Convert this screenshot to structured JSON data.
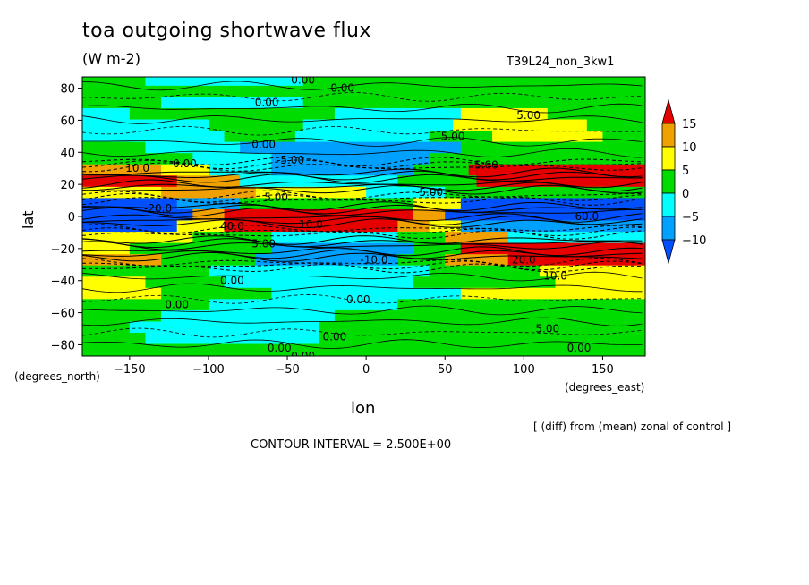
{
  "chart_data": {
    "type": "heatmap",
    "title": "toa outgoing shortwave flux",
    "units": "(W m-2)",
    "run_label": "T39L24_non_3kw1",
    "xlabel": "lon",
    "ylabel": "lat",
    "x_unit_label": "(degrees_east)",
    "y_unit_label": "(degrees_north)",
    "x_ticks": [
      -150,
      -100,
      -50,
      0,
      50,
      100,
      150
    ],
    "y_ticks": [
      80,
      60,
      40,
      20,
      0,
      -20,
      -40,
      -60,
      -80
    ],
    "xlim": [
      -180,
      177
    ],
    "ylim": [
      -87,
      87
    ],
    "note": "[ (diff) from (mean) zonal of control ]",
    "contour_interval_text": "CONTOUR INTERVAL = 2.500E+00",
    "colorbar": {
      "ticks": [
        15,
        10,
        5,
        0,
        -5,
        -10
      ],
      "bins": [
        {
          "lo": 15,
          "hi": null,
          "color": "#e60000"
        },
        {
          "lo": 10,
          "hi": 15,
          "color": "#f0a000"
        },
        {
          "lo": 5,
          "hi": 10,
          "color": "#ffff00"
        },
        {
          "lo": 0,
          "hi": 5,
          "color": "#00dc00"
        },
        {
          "lo": -5,
          "hi": 0,
          "color": "#00ffff"
        },
        {
          "lo": -10,
          "hi": -5,
          "color": "#00a0ff"
        },
        {
          "lo": null,
          "hi": -10,
          "color": "#0050ff"
        }
      ]
    },
    "contour_labels": [
      {
        "text": "0.00",
        "lon": -40,
        "lat": 85
      },
      {
        "text": "0.00",
        "lon": -15,
        "lat": 80
      },
      {
        "text": "0.00",
        "lon": -63,
        "lat": 71
      },
      {
        "text": "5.00",
        "lon": 103,
        "lat": 63
      },
      {
        "text": "5.00",
        "lon": 55,
        "lat": 50
      },
      {
        "text": "0.00",
        "lon": -65,
        "lat": 45
      },
      {
        "text": "0.00",
        "lon": -115,
        "lat": 33
      },
      {
        "text": "-5.00",
        "lon": -48,
        "lat": 35
      },
      {
        "text": "10.0",
        "lon": -145,
        "lat": 30
      },
      {
        "text": "-5.00",
        "lon": 75,
        "lat": 32
      },
      {
        "text": "5.00",
        "lon": -57,
        "lat": 12
      },
      {
        "text": "-20.0",
        "lon": -132,
        "lat": 5
      },
      {
        "text": "-5.00",
        "lon": 40,
        "lat": 15
      },
      {
        "text": "40.0",
        "lon": -85,
        "lat": -6
      },
      {
        "text": "10.0",
        "lon": -35,
        "lat": -5
      },
      {
        "text": "60.0",
        "lon": 140,
        "lat": 0
      },
      {
        "text": "5.00",
        "lon": -65,
        "lat": -17
      },
      {
        "text": "-10.0",
        "lon": 5,
        "lat": -27
      },
      {
        "text": "20.0",
        "lon": 100,
        "lat": -27
      },
      {
        "text": "0.00",
        "lon": -85,
        "lat": -40
      },
      {
        "text": "10.0",
        "lon": 120,
        "lat": -37
      },
      {
        "text": "0.00",
        "lon": -120,
        "lat": -55
      },
      {
        "text": "0.00",
        "lon": -5,
        "lat": -52
      },
      {
        "text": "5.00",
        "lon": 115,
        "lat": -70
      },
      {
        "text": "0.00",
        "lon": -20,
        "lat": -75
      },
      {
        "text": "0.00",
        "lon": -55,
        "lat": -82
      },
      {
        "text": "0.00",
        "lon": -40,
        "lat": -87
      },
      {
        "text": "0.00",
        "lon": 135,
        "lat": -82
      }
    ],
    "zonal_bands": [
      {
        "lat": 85,
        "colors": [
          {
            "from": -180,
            "to": -140,
            "c": "#00dc00"
          },
          {
            "from": -140,
            "to": -40,
            "c": "#00ffff"
          },
          {
            "from": -40,
            "to": 177,
            "c": "#00dc00"
          }
        ]
      },
      {
        "lat": 78,
        "colors": [
          {
            "from": -180,
            "to": 40,
            "c": "#00dc00"
          },
          {
            "from": 40,
            "to": 177,
            "c": "#00dc00"
          }
        ]
      },
      {
        "lat": 71,
        "colors": [
          {
            "from": -180,
            "to": -130,
            "c": "#00dc00"
          },
          {
            "from": -130,
            "to": -40,
            "c": "#00ffff"
          },
          {
            "from": -40,
            "to": 177,
            "c": "#00dc00"
          }
        ]
      },
      {
        "lat": 64,
        "colors": [
          {
            "from": -180,
            "to": -150,
            "c": "#00ffff"
          },
          {
            "from": -150,
            "to": -20,
            "c": "#00dc00"
          },
          {
            "from": -20,
            "to": 60,
            "c": "#00ffff"
          },
          {
            "from": 60,
            "to": 115,
            "c": "#ffff00"
          },
          {
            "from": 115,
            "to": 177,
            "c": "#00dc00"
          }
        ]
      },
      {
        "lat": 57,
        "colors": [
          {
            "from": -180,
            "to": -100,
            "c": "#00ffff"
          },
          {
            "from": -100,
            "to": -40,
            "c": "#00dc00"
          },
          {
            "from": -40,
            "to": 55,
            "c": "#00ffff"
          },
          {
            "from": 55,
            "to": 140,
            "c": "#ffff00"
          },
          {
            "from": 140,
            "to": 177,
            "c": "#00dc00"
          }
        ]
      },
      {
        "lat": 50,
        "colors": [
          {
            "from": -180,
            "to": -90,
            "c": "#00ffff"
          },
          {
            "from": -90,
            "to": -45,
            "c": "#00dc00"
          },
          {
            "from": -45,
            "to": 40,
            "c": "#00ffff"
          },
          {
            "from": 40,
            "to": 80,
            "c": "#00dc00"
          },
          {
            "from": 80,
            "to": 150,
            "c": "#ffff00"
          },
          {
            "from": 150,
            "to": 177,
            "c": "#00dc00"
          }
        ]
      },
      {
        "lat": 43,
        "colors": [
          {
            "from": -180,
            "to": -140,
            "c": "#00dc00"
          },
          {
            "from": -140,
            "to": -80,
            "c": "#00ffff"
          },
          {
            "from": -80,
            "to": 60,
            "c": "#00a0ff"
          },
          {
            "from": 60,
            "to": 177,
            "c": "#00dc00"
          }
        ]
      },
      {
        "lat": 36,
        "colors": [
          {
            "from": -180,
            "to": -110,
            "c": "#00dc00"
          },
          {
            "from": -110,
            "to": -60,
            "c": "#00ffff"
          },
          {
            "from": -60,
            "to": 40,
            "c": "#00a0ff"
          },
          {
            "from": 40,
            "to": 75,
            "c": "#00dc00"
          },
          {
            "from": 75,
            "to": 177,
            "c": "#00dc00"
          }
        ]
      },
      {
        "lat": 29,
        "colors": [
          {
            "from": -180,
            "to": -130,
            "c": "#f0a000"
          },
          {
            "from": -130,
            "to": -100,
            "c": "#ffff00"
          },
          {
            "from": -100,
            "to": -60,
            "c": "#00ffff"
          },
          {
            "from": -60,
            "to": 30,
            "c": "#00a0ff"
          },
          {
            "from": 30,
            "to": 65,
            "c": "#00dc00"
          },
          {
            "from": 65,
            "to": 80,
            "c": "#e60000"
          },
          {
            "from": 80,
            "to": 177,
            "c": "#e60000"
          }
        ]
      },
      {
        "lat": 22,
        "colors": [
          {
            "from": -180,
            "to": -120,
            "c": "#e60000"
          },
          {
            "from": -120,
            "to": -80,
            "c": "#f0a000"
          },
          {
            "from": -80,
            "to": 20,
            "c": "#00ffff"
          },
          {
            "from": 20,
            "to": 70,
            "c": "#00dc00"
          },
          {
            "from": 70,
            "to": 177,
            "c": "#e60000"
          }
        ]
      },
      {
        "lat": 15,
        "colors": [
          {
            "from": -180,
            "to": -130,
            "c": "#ffff00"
          },
          {
            "from": -130,
            "to": -70,
            "c": "#f0a000"
          },
          {
            "from": -70,
            "to": 0,
            "c": "#ffff00"
          },
          {
            "from": 0,
            "to": 50,
            "c": "#00ffff"
          },
          {
            "from": 50,
            "to": 177,
            "c": "#00dc00"
          }
        ]
      },
      {
        "lat": 8,
        "colors": [
          {
            "from": -180,
            "to": -120,
            "c": "#0050ff"
          },
          {
            "from": -120,
            "to": -80,
            "c": "#00a0ff"
          },
          {
            "from": -80,
            "to": 30,
            "c": "#00dc00"
          },
          {
            "from": 30,
            "to": 60,
            "c": "#ffff00"
          },
          {
            "from": 60,
            "to": 177,
            "c": "#0050ff"
          }
        ]
      },
      {
        "lat": 1,
        "colors": [
          {
            "from": -180,
            "to": -110,
            "c": "#0050ff"
          },
          {
            "from": -110,
            "to": -90,
            "c": "#f0a000"
          },
          {
            "from": -90,
            "to": 30,
            "c": "#e60000"
          },
          {
            "from": 30,
            "to": 50,
            "c": "#f0a000"
          },
          {
            "from": 50,
            "to": 177,
            "c": "#0050ff"
          }
        ]
      },
      {
        "lat": -6,
        "colors": [
          {
            "from": -180,
            "to": -120,
            "c": "#0050ff"
          },
          {
            "from": -120,
            "to": -90,
            "c": "#ffff00"
          },
          {
            "from": -90,
            "to": 20,
            "c": "#e60000"
          },
          {
            "from": 20,
            "to": 40,
            "c": "#f0a000"
          },
          {
            "from": 40,
            "to": 60,
            "c": "#ffff00"
          },
          {
            "from": 60,
            "to": 177,
            "c": "#00a0ff"
          }
        ]
      },
      {
        "lat": -13,
        "colors": [
          {
            "from": -180,
            "to": -110,
            "c": "#ffff00"
          },
          {
            "from": -110,
            "to": -60,
            "c": "#00dc00"
          },
          {
            "from": -60,
            "to": 20,
            "c": "#00ffff"
          },
          {
            "from": 20,
            "to": 50,
            "c": "#00dc00"
          },
          {
            "from": 50,
            "to": 90,
            "c": "#f0a000"
          },
          {
            "from": 90,
            "to": 177,
            "c": "#00ffff"
          }
        ]
      },
      {
        "lat": -20,
        "colors": [
          {
            "from": -180,
            "to": -150,
            "c": "#ffff00"
          },
          {
            "from": -150,
            "to": -60,
            "c": "#00dc00"
          },
          {
            "from": -60,
            "to": 30,
            "c": "#00a0ff"
          },
          {
            "from": 30,
            "to": 60,
            "c": "#00dc00"
          },
          {
            "from": 60,
            "to": 177,
            "c": "#e60000"
          }
        ]
      },
      {
        "lat": -27,
        "colors": [
          {
            "from": -180,
            "to": -130,
            "c": "#f0a000"
          },
          {
            "from": -130,
            "to": -70,
            "c": "#00dc00"
          },
          {
            "from": -70,
            "to": 20,
            "c": "#00a0ff"
          },
          {
            "from": 20,
            "to": 50,
            "c": "#00dc00"
          },
          {
            "from": 50,
            "to": 90,
            "c": "#f0a000"
          },
          {
            "from": 90,
            "to": 177,
            "c": "#e60000"
          }
        ]
      },
      {
        "lat": -34,
        "colors": [
          {
            "from": -180,
            "to": -100,
            "c": "#00dc00"
          },
          {
            "from": -100,
            "to": -30,
            "c": "#00ffff"
          },
          {
            "from": -30,
            "to": 40,
            "c": "#00ffff"
          },
          {
            "from": 40,
            "to": 110,
            "c": "#00dc00"
          },
          {
            "from": 110,
            "to": 177,
            "c": "#ffff00"
          }
        ]
      },
      {
        "lat": -41,
        "colors": [
          {
            "from": -180,
            "to": -140,
            "c": "#ffff00"
          },
          {
            "from": -140,
            "to": -90,
            "c": "#00dc00"
          },
          {
            "from": -90,
            "to": 30,
            "c": "#00ffff"
          },
          {
            "from": 30,
            "to": 120,
            "c": "#00dc00"
          },
          {
            "from": 120,
            "to": 177,
            "c": "#ffff00"
          }
        ]
      },
      {
        "lat": -48,
        "colors": [
          {
            "from": -180,
            "to": -130,
            "c": "#ffff00"
          },
          {
            "from": -130,
            "to": -60,
            "c": "#00dc00"
          },
          {
            "from": -60,
            "to": 60,
            "c": "#00ffff"
          },
          {
            "from": 60,
            "to": 177,
            "c": "#ffff00"
          }
        ]
      },
      {
        "lat": -55,
        "colors": [
          {
            "from": -180,
            "to": -140,
            "c": "#00dc00"
          },
          {
            "from": -140,
            "to": -100,
            "c": "#00dc00"
          },
          {
            "from": -100,
            "to": 20,
            "c": "#00ffff"
          },
          {
            "from": 20,
            "to": 60,
            "c": "#00dc00"
          },
          {
            "from": 60,
            "to": 177,
            "c": "#00dc00"
          }
        ]
      },
      {
        "lat": -62,
        "colors": [
          {
            "from": -180,
            "to": -130,
            "c": "#00dc00"
          },
          {
            "from": -130,
            "to": -20,
            "c": "#00ffff"
          },
          {
            "from": -20,
            "to": 177,
            "c": "#00dc00"
          }
        ]
      },
      {
        "lat": -69,
        "colors": [
          {
            "from": -180,
            "to": -150,
            "c": "#00dc00"
          },
          {
            "from": -150,
            "to": -30,
            "c": "#00ffff"
          },
          {
            "from": -30,
            "to": 177,
            "c": "#00dc00"
          }
        ]
      },
      {
        "lat": -76,
        "colors": [
          {
            "from": -180,
            "to": -140,
            "c": "#00dc00"
          },
          {
            "from": -140,
            "to": -30,
            "c": "#00ffff"
          },
          {
            "from": -30,
            "to": 177,
            "c": "#00dc00"
          }
        ]
      },
      {
        "lat": -83,
        "colors": [
          {
            "from": -180,
            "to": 177,
            "c": "#00dc00"
          }
        ]
      }
    ]
  }
}
